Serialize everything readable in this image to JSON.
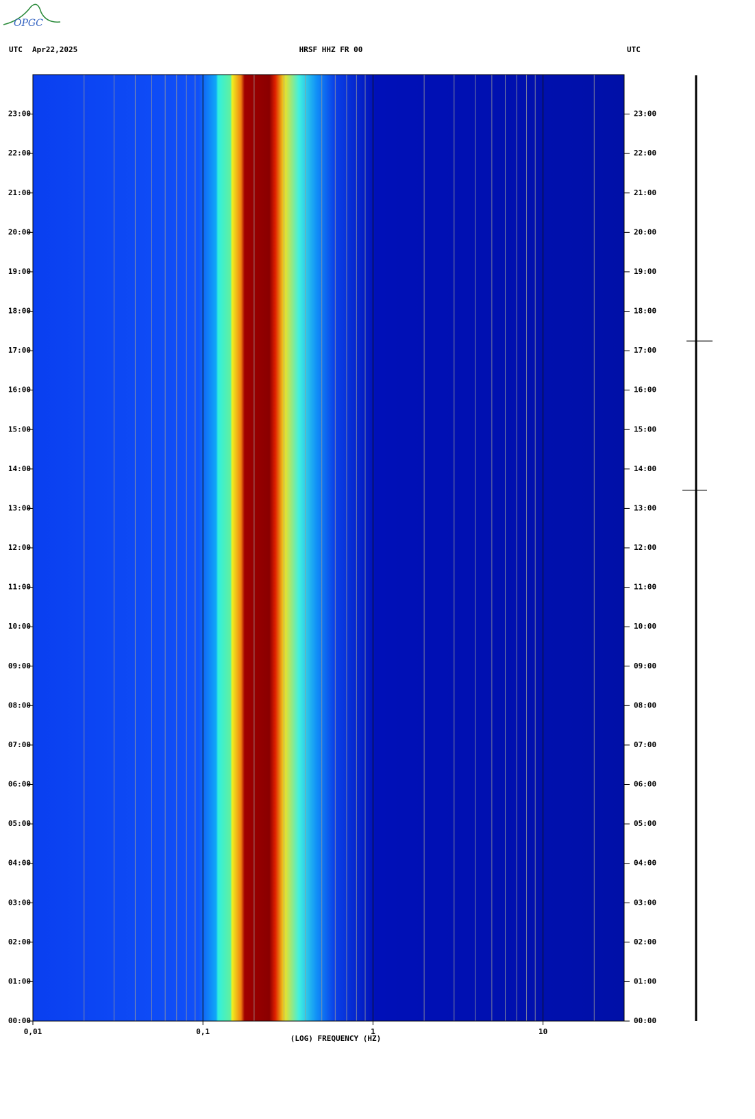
{
  "logo": "OPGC",
  "chart_data": {
    "type": "spectrogram",
    "title": "HRSF HHZ FR 00",
    "left_label": "UTC",
    "date": "Apr22,2025",
    "right_label": "UTC",
    "x_label": "(LOG) FREQUENCY (HZ)",
    "x_log": true,
    "grid": true,
    "xlim": [
      0.01,
      30
    ],
    "xticks": [
      {
        "value": 0.01,
        "label": "0,01"
      },
      {
        "value": 0.1,
        "label": "0,1"
      },
      1,
      10
    ],
    "ylim": [
      0,
      24
    ],
    "yticks": [
      {
        "value": 0,
        "label": "00:00"
      },
      {
        "value": 1,
        "label": "01:00"
      },
      {
        "value": 2,
        "label": "02:00"
      },
      {
        "value": 3,
        "label": "03:00"
      },
      {
        "value": 4,
        "label": "04:00"
      },
      {
        "value": 5,
        "label": "05:00"
      },
      {
        "value": 6,
        "label": "06:00"
      },
      {
        "value": 7,
        "label": "07:00"
      },
      {
        "value": 8,
        "label": "08:00"
      },
      {
        "value": 9,
        "label": "09:00"
      },
      {
        "value": 10,
        "label": "10:00"
      },
      {
        "value": 11,
        "label": "11:00"
      },
      {
        "value": 12,
        "label": "12:00"
      },
      {
        "value": 13,
        "label": "13:00"
      },
      {
        "value": 14,
        "label": "14:00"
      },
      {
        "value": 15,
        "label": "15:00"
      },
      {
        "value": 16,
        "label": "16:00"
      },
      {
        "value": 17,
        "label": "17:00"
      },
      {
        "value": 18,
        "label": "18:00"
      },
      {
        "value": 19,
        "label": "19:00"
      },
      {
        "value": 20,
        "label": "20:00"
      },
      {
        "value": 21,
        "label": "21:00"
      },
      {
        "value": 22,
        "label": "22:00"
      },
      {
        "value": 23,
        "label": "23:00"
      }
    ]
  }
}
